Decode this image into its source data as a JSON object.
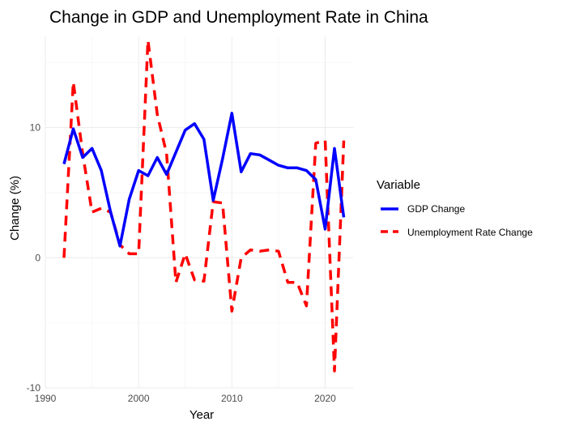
{
  "chart_data": {
    "type": "line",
    "title": "Change in GDP and Unemployment Rate in China",
    "xlabel": "Year",
    "ylabel": "Change (%)",
    "xlim": [
      1990,
      2023
    ],
    "ylim": [
      -10,
      17
    ],
    "x_ticks": [
      1990,
      2000,
      2010,
      2020
    ],
    "y_ticks": [
      -10,
      0,
      10
    ],
    "grid": true,
    "legend": {
      "title": "Variable",
      "position": "right",
      "entries": [
        "GDP Change",
        "Unemployment Rate Change"
      ]
    },
    "x": [
      1992,
      1993,
      1994,
      1995,
      1996,
      1997,
      1998,
      1999,
      2000,
      2001,
      2002,
      2003,
      2004,
      2005,
      2006,
      2007,
      2008,
      2009,
      2010,
      2011,
      2012,
      2013,
      2014,
      2015,
      2016,
      2017,
      2018,
      2019,
      2020,
      2021,
      2022
    ],
    "series": [
      {
        "name": "GDP Change",
        "color": "#0000ff",
        "style": "solid",
        "values": [
          7.2,
          9.9,
          7.7,
          8.4,
          6.7,
          3.5,
          0.9,
          4.5,
          6.7,
          6.3,
          7.7,
          6.4,
          8.1,
          9.8,
          10.3,
          9.1,
          4.4,
          7.6,
          11.1,
          6.6,
          8.0,
          7.9,
          7.5,
          7.1,
          6.9,
          6.9,
          6.7,
          6.0,
          2.2,
          8.4,
          3.1
        ]
      },
      {
        "name": "Unemployment Rate Change",
        "color": "#ff0000",
        "style": "dashed",
        "values": [
          0.0,
          13.5,
          8.0,
          3.5,
          3.8,
          3.5,
          1.0,
          0.3,
          0.3,
          16.7,
          11.0,
          8.0,
          -1.9,
          0.3,
          -1.7,
          -1.8,
          4.3,
          4.2,
          -4.1,
          0.0,
          0.6,
          0.5,
          0.6,
          0.5,
          -1.9,
          -1.9,
          -3.7,
          8.8,
          9.0,
          -8.7,
          9.0
        ]
      }
    ]
  }
}
